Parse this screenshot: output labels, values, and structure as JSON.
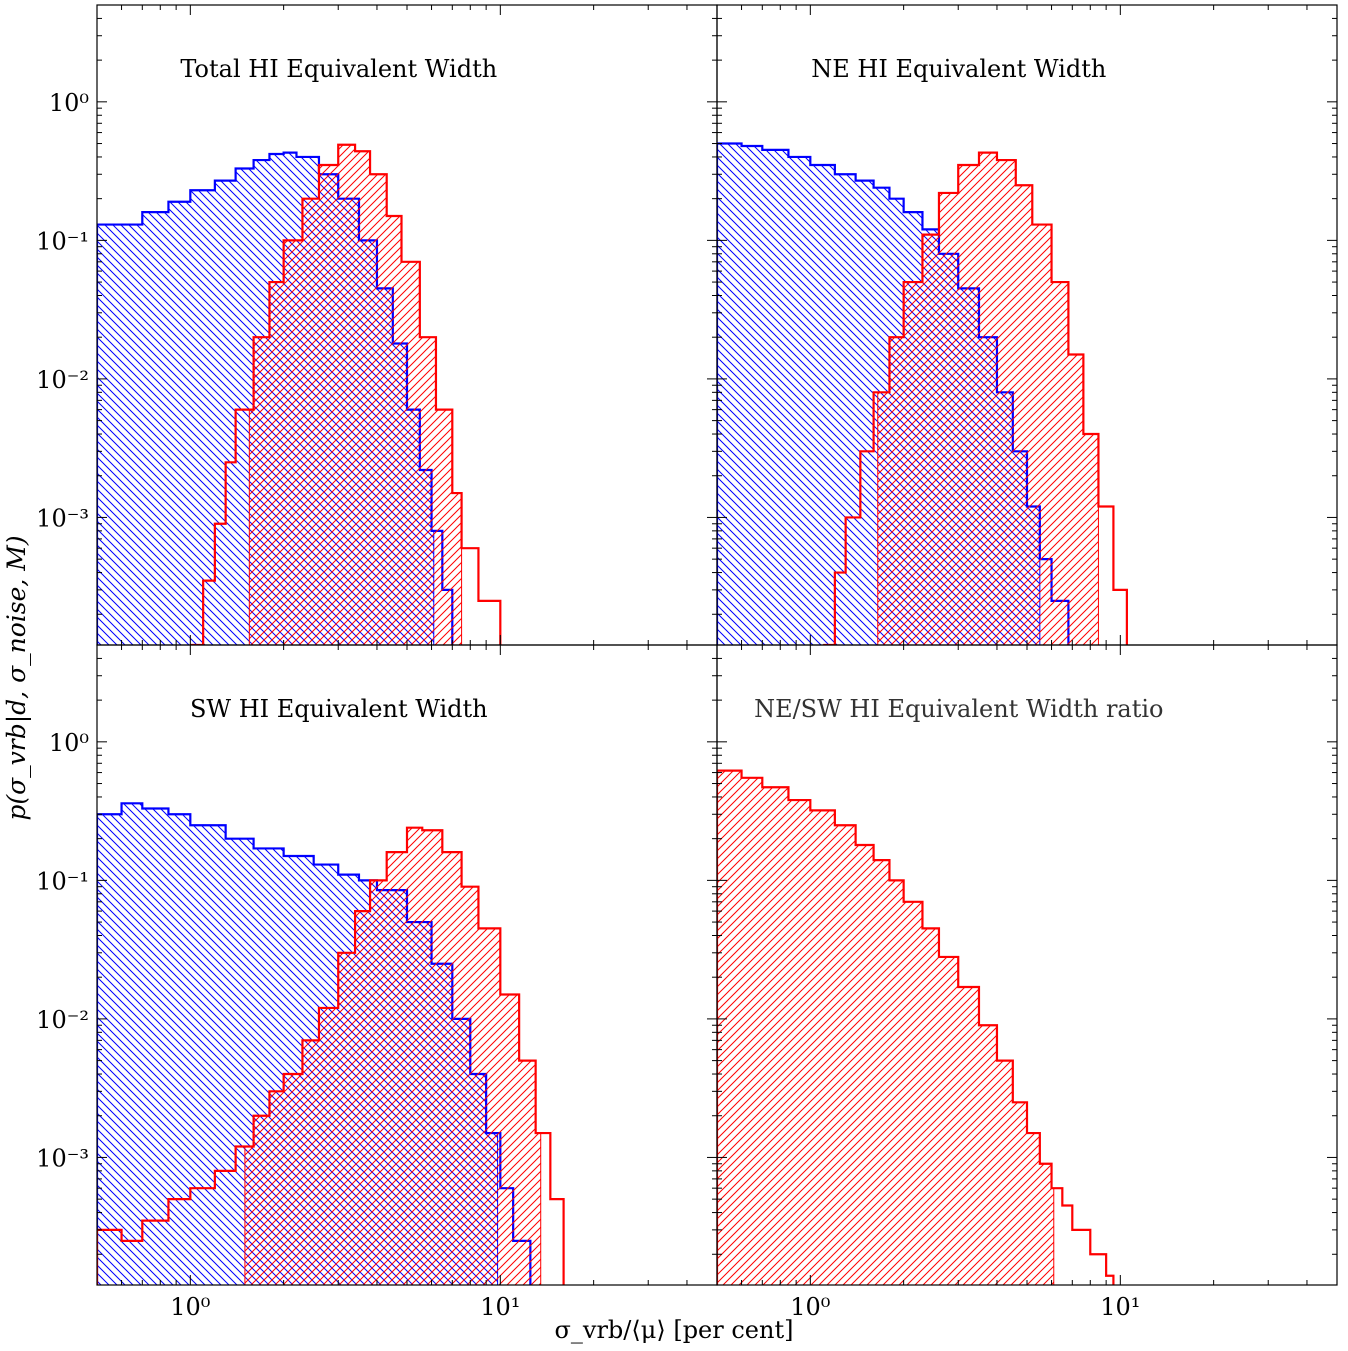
{
  "figure": {
    "ylabel": "p(σ_vrb|d, σ_noise, M)",
    "xlabel": "σ_vrb/⟨μ⟩ [per cent]"
  },
  "chart_data": [
    {
      "type": "histogram",
      "title": "Total HI Equivalent Width",
      "xscale": "log",
      "yscale": "log",
      "xlim": [
        0.5,
        50
      ],
      "ylim": [
        0.00012,
        5
      ],
      "x_ticks": [
        "10^0",
        "10^1"
      ],
      "y_ticks": [
        "10^-3",
        "10^-2",
        "10^-1",
        "10^0"
      ],
      "grid": false,
      "series": [
        {
          "color": "#0000ff",
          "hatch": "backslash",
          "fill_end": 6.1,
          "points": [
            [
              0.5,
              0.13
            ],
            [
              0.6,
              0.13
            ],
            [
              0.7,
              0.16
            ],
            [
              0.85,
              0.19
            ],
            [
              1.0,
              0.23
            ],
            [
              1.2,
              0.27
            ],
            [
              1.4,
              0.33
            ],
            [
              1.6,
              0.38
            ],
            [
              1.8,
              0.42
            ],
            [
              2.0,
              0.43
            ],
            [
              2.2,
              0.4
            ],
            [
              2.6,
              0.3
            ],
            [
              3.0,
              0.2
            ],
            [
              3.5,
              0.1
            ],
            [
              4.0,
              0.045
            ],
            [
              4.5,
              0.018
            ],
            [
              5.0,
              0.006
            ],
            [
              5.5,
              0.0022
            ],
            [
              6.0,
              0.0008
            ],
            [
              6.5,
              0.0003
            ],
            [
              7.0,
              0.00012
            ]
          ]
        },
        {
          "color": "#ff0000",
          "hatch": "slash",
          "fill_start": 1.55,
          "fill_end": 7.5,
          "points": [
            [
              1.0,
              0.00012
            ],
            [
              1.1,
              0.00035
            ],
            [
              1.2,
              0.0009
            ],
            [
              1.3,
              0.0025
            ],
            [
              1.4,
              0.006
            ],
            [
              1.6,
              0.02
            ],
            [
              1.8,
              0.05
            ],
            [
              2.0,
              0.1
            ],
            [
              2.3,
              0.2
            ],
            [
              2.6,
              0.35
            ],
            [
              3.0,
              0.49
            ],
            [
              3.4,
              0.44
            ],
            [
              3.8,
              0.3
            ],
            [
              4.3,
              0.15
            ],
            [
              4.8,
              0.07
            ],
            [
              5.5,
              0.02
            ],
            [
              6.2,
              0.006
            ],
            [
              7.0,
              0.0015
            ],
            [
              7.5,
              0.0006
            ],
            [
              8.5,
              0.00025
            ],
            [
              10.0,
              0.00012
            ]
          ]
        }
      ]
    },
    {
      "type": "histogram",
      "title": "NE HI Equivalent Width",
      "xscale": "log",
      "yscale": "log",
      "xlim": [
        0.5,
        50
      ],
      "ylim": [
        0.00012,
        5
      ],
      "x_ticks": [
        "10^0",
        "10^1"
      ],
      "y_ticks": [],
      "grid": false,
      "series": [
        {
          "color": "#0000ff",
          "hatch": "backslash",
          "fill_end": 5.5,
          "points": [
            [
              0.5,
              0.5
            ],
            [
              0.6,
              0.48
            ],
            [
              0.7,
              0.45
            ],
            [
              0.85,
              0.4
            ],
            [
              1.0,
              0.35
            ],
            [
              1.2,
              0.3
            ],
            [
              1.4,
              0.27
            ],
            [
              1.6,
              0.24
            ],
            [
              1.8,
              0.2
            ],
            [
              2.0,
              0.16
            ],
            [
              2.3,
              0.12
            ],
            [
              2.6,
              0.08
            ],
            [
              3.0,
              0.045
            ],
            [
              3.5,
              0.02
            ],
            [
              4.0,
              0.008
            ],
            [
              4.5,
              0.003
            ],
            [
              5.0,
              0.0012
            ],
            [
              5.5,
              0.0005
            ],
            [
              6.0,
              0.00025
            ],
            [
              6.8,
              0.00012
            ]
          ]
        },
        {
          "color": "#ff0000",
          "hatch": "slash",
          "fill_start": 1.65,
          "fill_end": 8.5,
          "points": [
            [
              1.1,
              0.00012
            ],
            [
              1.2,
              0.0004
            ],
            [
              1.3,
              0.001
            ],
            [
              1.45,
              0.003
            ],
            [
              1.6,
              0.008
            ],
            [
              1.8,
              0.02
            ],
            [
              2.0,
              0.05
            ],
            [
              2.3,
              0.11
            ],
            [
              2.6,
              0.22
            ],
            [
              3.0,
              0.35
            ],
            [
              3.5,
              0.43
            ],
            [
              4.0,
              0.38
            ],
            [
              4.6,
              0.25
            ],
            [
              5.2,
              0.13
            ],
            [
              6.0,
              0.05
            ],
            [
              6.8,
              0.015
            ],
            [
              7.6,
              0.004
            ],
            [
              8.5,
              0.0012
            ],
            [
              9.5,
              0.0003
            ],
            [
              10.5,
              0.00012
            ]
          ]
        }
      ]
    },
    {
      "type": "histogram",
      "title": "SW HI Equivalent Width",
      "xscale": "log",
      "yscale": "log",
      "xlim": [
        0.5,
        50
      ],
      "ylim": [
        0.00012,
        5
      ],
      "x_ticks": [
        "10^0",
        "10^1"
      ],
      "y_ticks": [
        "10^-3",
        "10^-2",
        "10^-1",
        "10^0"
      ],
      "grid": false,
      "series": [
        {
          "color": "#0000ff",
          "hatch": "backslash",
          "fill_end": 9.8,
          "points": [
            [
              0.5,
              0.3
            ],
            [
              0.6,
              0.36
            ],
            [
              0.7,
              0.33
            ],
            [
              0.85,
              0.3
            ],
            [
              1.0,
              0.25
            ],
            [
              1.3,
              0.2
            ],
            [
              1.6,
              0.17
            ],
            [
              2.0,
              0.15
            ],
            [
              2.5,
              0.13
            ],
            [
              3.0,
              0.11
            ],
            [
              3.5,
              0.1
            ],
            [
              4.0,
              0.085
            ],
            [
              5.0,
              0.05
            ],
            [
              6.0,
              0.025
            ],
            [
              7.0,
              0.01
            ],
            [
              8.0,
              0.004
            ],
            [
              9.0,
              0.0015
            ],
            [
              10.0,
              0.0006
            ],
            [
              11.0,
              0.00025
            ],
            [
              12.5,
              0.00012
            ]
          ]
        },
        {
          "color": "#ff0000",
          "hatch": "slash",
          "fill_start": 1.5,
          "fill_end": 13.5,
          "points": [
            [
              0.5,
              0.0003
            ],
            [
              0.6,
              0.00025
            ],
            [
              0.7,
              0.00035
            ],
            [
              0.85,
              0.0005
            ],
            [
              1.0,
              0.0006
            ],
            [
              1.2,
              0.0008
            ],
            [
              1.4,
              0.0012
            ],
            [
              1.6,
              0.002
            ],
            [
              1.8,
              0.003
            ],
            [
              2.0,
              0.004
            ],
            [
              2.3,
              0.007
            ],
            [
              2.6,
              0.012
            ],
            [
              3.0,
              0.03
            ],
            [
              3.4,
              0.06
            ],
            [
              3.8,
              0.1
            ],
            [
              4.3,
              0.16
            ],
            [
              5.0,
              0.24
            ],
            [
              5.6,
              0.23
            ],
            [
              6.5,
              0.16
            ],
            [
              7.5,
              0.09
            ],
            [
              8.5,
              0.045
            ],
            [
              10.0,
              0.015
            ],
            [
              11.5,
              0.005
            ],
            [
              13.0,
              0.0015
            ],
            [
              14.5,
              0.0005
            ],
            [
              16.0,
              0.00012
            ]
          ]
        }
      ]
    },
    {
      "type": "histogram",
      "title": "NE/SW HI Equivalent Width ratio",
      "xscale": "log",
      "yscale": "log",
      "xlim": [
        0.5,
        50
      ],
      "ylim": [
        0.00012,
        5
      ],
      "x_ticks": [
        "10^0",
        "10^1"
      ],
      "y_ticks": [],
      "grid": false,
      "series": [
        {
          "color": "#ff0000",
          "hatch": "slash",
          "fill_start": 0.5,
          "fill_end": 6.1,
          "points": [
            [
              0.5,
              0.62
            ],
            [
              0.6,
              0.55
            ],
            [
              0.7,
              0.47
            ],
            [
              0.85,
              0.38
            ],
            [
              1.0,
              0.32
            ],
            [
              1.2,
              0.25
            ],
            [
              1.4,
              0.18
            ],
            [
              1.6,
              0.14
            ],
            [
              1.8,
              0.1
            ],
            [
              2.0,
              0.07
            ],
            [
              2.3,
              0.045
            ],
            [
              2.6,
              0.028
            ],
            [
              3.0,
              0.017
            ],
            [
              3.5,
              0.009
            ],
            [
              4.0,
              0.005
            ],
            [
              4.5,
              0.0025
            ],
            [
              5.0,
              0.0015
            ],
            [
              5.5,
              0.0009
            ],
            [
              6.0,
              0.0006
            ],
            [
              6.5,
              0.00045
            ],
            [
              7.0,
              0.0003
            ],
            [
              8.0,
              0.0002
            ],
            [
              9.0,
              0.00014
            ],
            [
              9.5,
              0.00012
            ]
          ]
        }
      ]
    }
  ]
}
